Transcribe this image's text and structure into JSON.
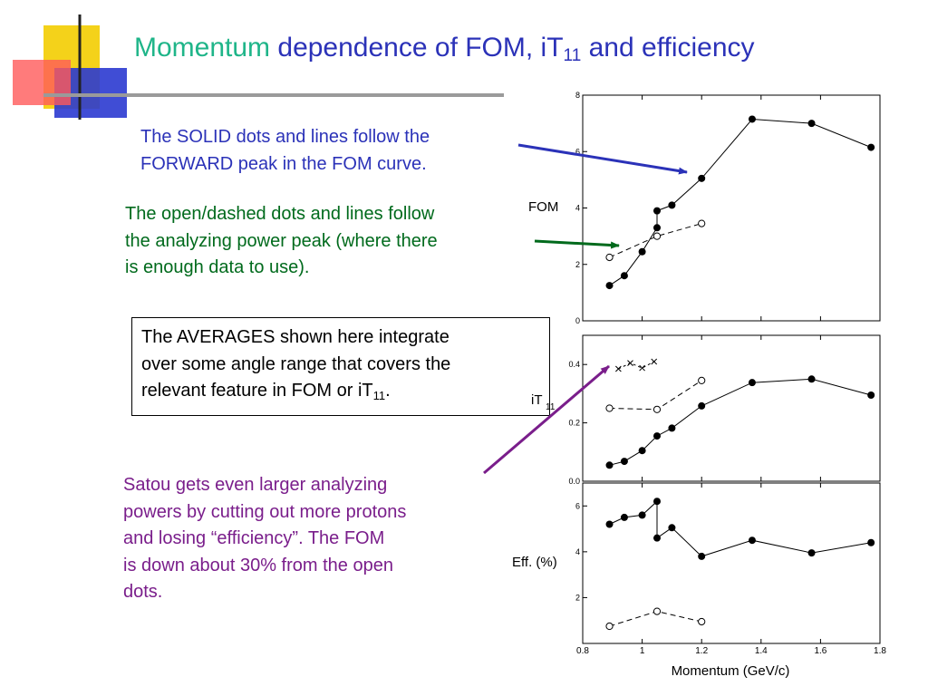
{
  "slide": {
    "title_highlight": "Momentum",
    "title_main": " dependence of FOM, iT",
    "title_sub": "11",
    "title_end": " and efficiency",
    "note_solid": [
      "The SOLID dots and lines follow the",
      "FORWARD peak in the FOM curve."
    ],
    "note_open": [
      "The open/dashed dots and lines follow",
      "the analyzing power peak (where there",
      "is enough data to use)."
    ],
    "note_avg_lines": [
      "The AVERAGES shown here integrate",
      "over some angle range that covers the"
    ],
    "note_avg_last": "relevant feature in FOM or iT",
    "note_avg_sub": "11",
    "note_avg_end": ".",
    "note_satou": [
      "Satou gets even larger analyzing",
      "powers by cutting out more protons",
      "and losing “efficiency”.  The FOM",
      "is down about 30% from the open",
      "dots."
    ]
  },
  "colors": {
    "title_highlight": "#1fb589",
    "title": "#2b32b8",
    "blue": "#2b32b8",
    "green": "#006a1c",
    "purple": "#7a1e8b"
  },
  "chart_data": {
    "type": "line",
    "xlabel": "Momentum  (GeV/c)",
    "xlim": [
      0.8,
      1.8
    ],
    "xticks": [
      0.8,
      1,
      1.2,
      1.4,
      1.6,
      1.8
    ],
    "panels": [
      {
        "ylabel": "FOM",
        "ylim": [
          0,
          8
        ],
        "yticks": [
          0,
          2,
          4,
          6,
          8
        ],
        "series": [
          {
            "style": "solid-filled",
            "points": [
              [
                0.89,
                1.25
              ],
              [
                0.94,
                1.6
              ],
              [
                1.0,
                2.45
              ],
              [
                1.05,
                3.3
              ],
              [
                1.05,
                3.9
              ],
              [
                1.1,
                4.1
              ],
              [
                1.2,
                5.05
              ],
              [
                1.37,
                7.15
              ],
              [
                1.57,
                7.0
              ],
              [
                1.77,
                6.15
              ]
            ]
          },
          {
            "style": "dashed-open",
            "points": [
              [
                0.89,
                2.25
              ],
              [
                1.05,
                3.0
              ],
              [
                1.2,
                3.45
              ]
            ]
          }
        ]
      },
      {
        "ylabel": "iT",
        "ylabel_sub": "11",
        "ylim": [
          0,
          0.5
        ],
        "yticks": [
          0.0,
          0.2,
          0.4
        ],
        "ytick_labels": [
          "0.0",
          "0.2",
          "0.4"
        ],
        "series": [
          {
            "style": "solid-filled",
            "points": [
              [
                0.89,
                0.055
              ],
              [
                0.94,
                0.068
              ],
              [
                1.0,
                0.105
              ],
              [
                1.05,
                0.155
              ],
              [
                1.1,
                0.182
              ],
              [
                1.2,
                0.258
              ],
              [
                1.37,
                0.338
              ],
              [
                1.57,
                0.35
              ],
              [
                1.77,
                0.295
              ]
            ]
          },
          {
            "style": "dashed-open",
            "points": [
              [
                0.89,
                0.25
              ],
              [
                1.05,
                0.246
              ],
              [
                1.2,
                0.345
              ]
            ]
          },
          {
            "style": "dashed-cross",
            "points": [
              [
                0.92,
                0.385
              ],
              [
                0.96,
                0.405
              ],
              [
                1.0,
                0.388
              ],
              [
                1.04,
                0.41
              ]
            ]
          }
        ]
      },
      {
        "ylabel": "Eff. (%)",
        "ylim": [
          0,
          7
        ],
        "yticks": [
          2,
          4,
          6
        ],
        "series": [
          {
            "style": "solid-filled",
            "points": [
              [
                0.89,
                5.2
              ],
              [
                0.94,
                5.5
              ],
              [
                1.0,
                5.6
              ],
              [
                1.05,
                6.2
              ],
              [
                1.05,
                4.6
              ],
              [
                1.1,
                5.05
              ],
              [
                1.2,
                3.8
              ],
              [
                1.37,
                4.5
              ],
              [
                1.57,
                3.95
              ],
              [
                1.77,
                4.4
              ]
            ]
          },
          {
            "style": "dashed-open",
            "points": [
              [
                0.89,
                0.75
              ],
              [
                1.05,
                1.4
              ],
              [
                1.2,
                0.95
              ]
            ]
          }
        ]
      }
    ]
  }
}
